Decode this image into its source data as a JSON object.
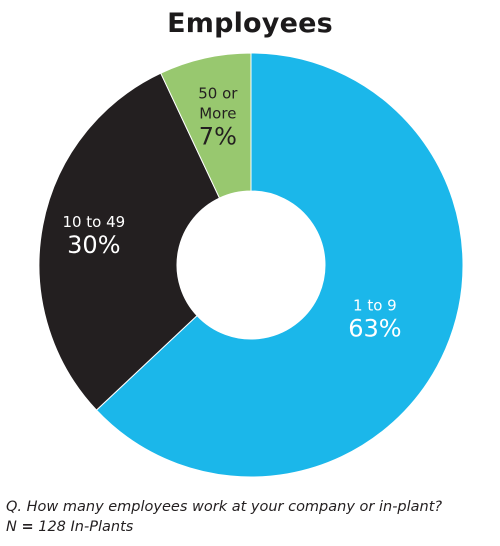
{
  "chart_data": {
    "type": "pie",
    "title": "Employees",
    "donut": true,
    "slices": [
      {
        "name": "1 to 9",
        "label": "1 to 9",
        "value": 63,
        "value_label": "63%",
        "color": "#1bb7ea"
      },
      {
        "name": "10 to 49",
        "label": "10 to 49",
        "value": 30,
        "value_label": "30%",
        "color": "#231f20"
      },
      {
        "name": "50 or More",
        "label_lines": [
          "50 or",
          "More"
        ],
        "value": 7,
        "value_label": "7%",
        "color": "#98c86f"
      }
    ],
    "start": "12 o'clock",
    "direction": "clockwise"
  },
  "footer": {
    "question": "Q. How many employees work at your company or in-plant?",
    "n_prefix": "N",
    "n_equals": "=",
    "n_rest": "128 In-Plants"
  }
}
